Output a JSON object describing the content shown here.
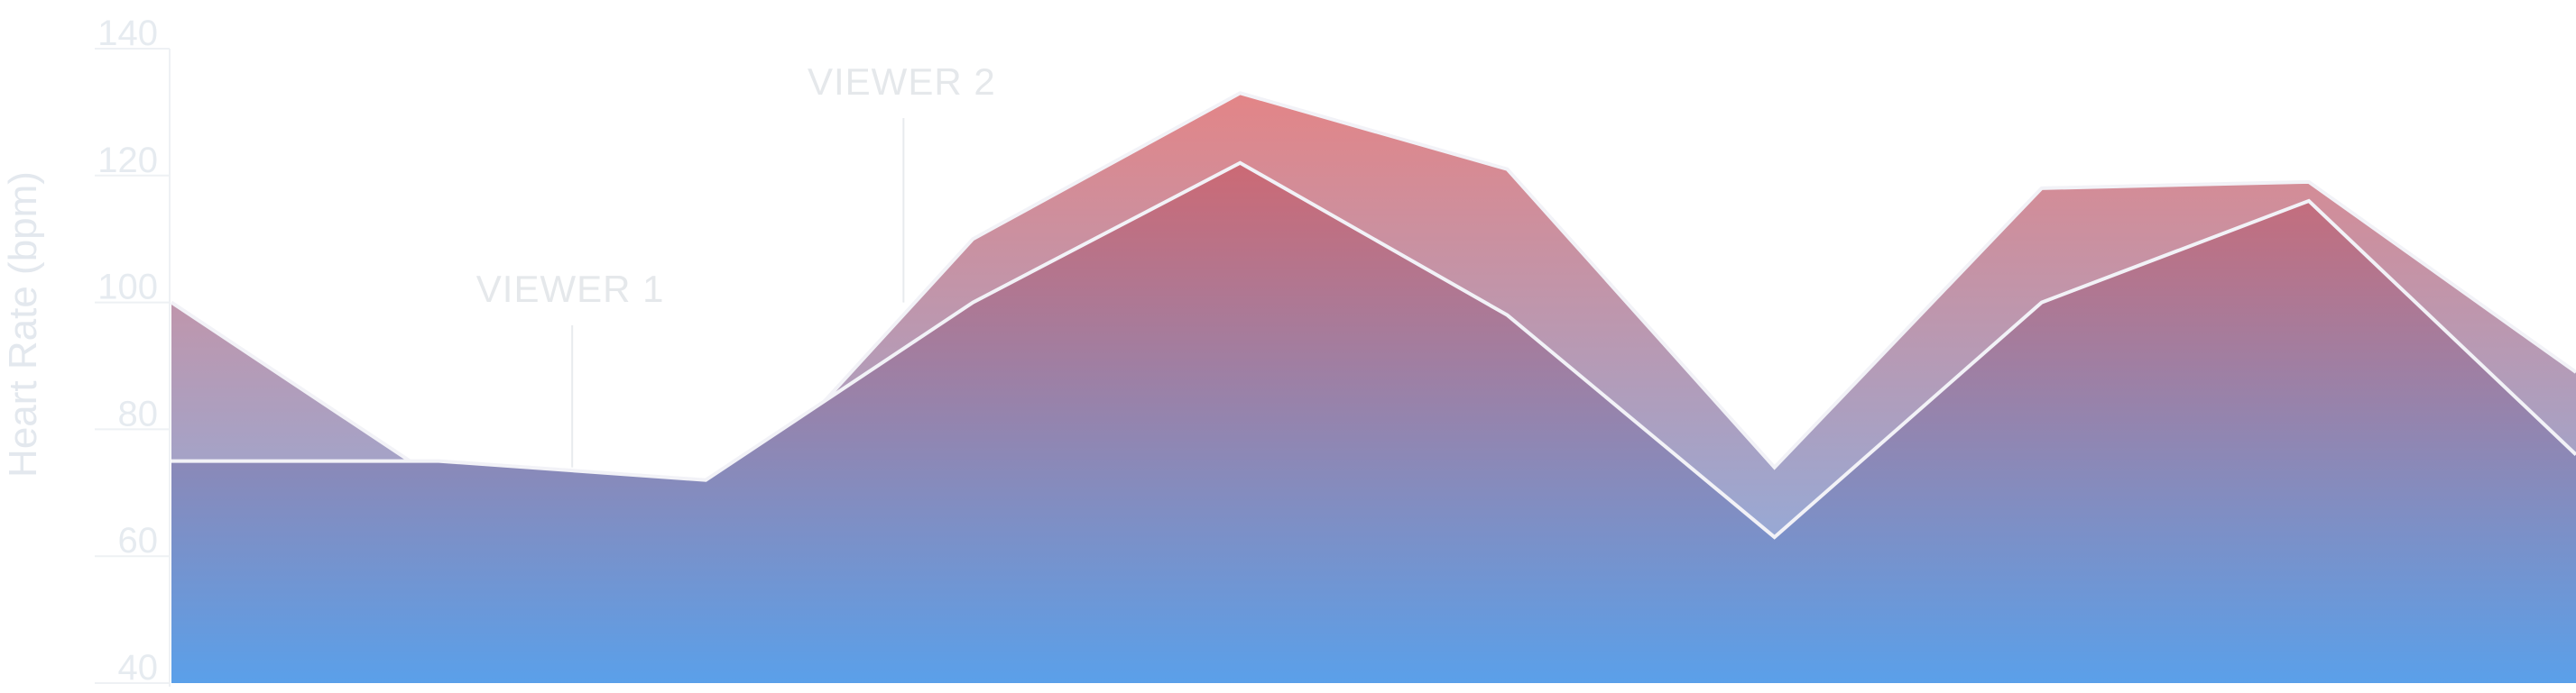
{
  "chart_data": {
    "type": "area",
    "ylabel": "Heart Rate (bpm)",
    "ylim": [
      40,
      140
    ],
    "yticks": [
      40,
      60,
      80,
      100,
      120,
      140
    ],
    "x": [
      0,
      1,
      2,
      3,
      4,
      5,
      6,
      7,
      8,
      9
    ],
    "series": [
      {
        "values": [
          100,
          72,
          64,
          110,
          133,
          121,
          74,
          118,
          119,
          89
        ]
      },
      {
        "values": [
          75,
          75,
          72,
          100,
          122,
          98,
          63,
          100,
          116,
          76
        ]
      }
    ],
    "annotations": [
      {
        "label": "VIEWER 1",
        "x": 1.5,
        "y_end": 74
      },
      {
        "label": "VIEWER 2",
        "x": 2.74,
        "y_end": 100
      }
    ],
    "colors": {
      "top": "#e06060",
      "bottom": "#5aa0ea",
      "line": "#f2f2f7"
    }
  }
}
